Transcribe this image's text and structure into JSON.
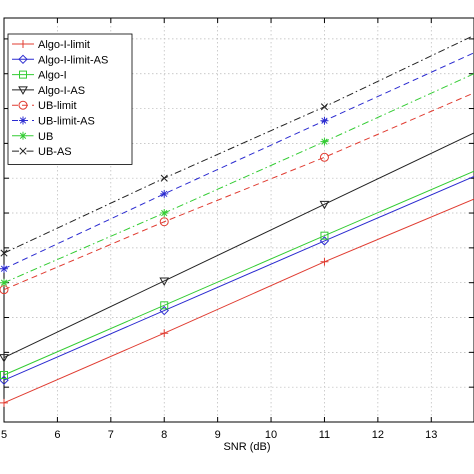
{
  "chart_data": {
    "type": "line",
    "xlabel": "SNR (dB)",
    "ylabel": "",
    "title": "",
    "xlim": [
      5,
      13.8
    ],
    "ylim": [
      0,
      11.6
    ],
    "xticks": [
      5,
      6,
      7,
      8,
      9,
      10,
      11,
      12,
      13
    ],
    "yticks": [
      1,
      2,
      3,
      4,
      5,
      6,
      7,
      8,
      9,
      10,
      11
    ],
    "grid": true,
    "legend_position": "top-left",
    "series": [
      {
        "name": "Algo-I-limit",
        "color": "#e03c31",
        "dash": "solid",
        "marker": "plus",
        "x": [
          5,
          8,
          11,
          13.8
        ],
        "y": [
          0.55,
          2.55,
          4.6,
          6.4
        ]
      },
      {
        "name": "Algo-I-limit-AS",
        "color": "#2b2bd0",
        "dash": "solid",
        "marker": "diamond",
        "x": [
          5,
          8,
          11,
          13.8
        ],
        "y": [
          1.2,
          3.2,
          5.2,
          7.05
        ]
      },
      {
        "name": "Algo-I",
        "color": "#33cc33",
        "dash": "solid",
        "marker": "square",
        "x": [
          5,
          8,
          11,
          13.8
        ],
        "y": [
          1.35,
          3.35,
          5.35,
          7.2
        ]
      },
      {
        "name": "Algo-I-AS",
        "color": "#222222",
        "dash": "solid",
        "marker": "triangle-down",
        "x": [
          5,
          8,
          11,
          13.8
        ],
        "y": [
          1.85,
          4.05,
          6.25,
          8.3
        ]
      },
      {
        "name": "UB-limit",
        "color": "#e03c31",
        "dash": "dashed",
        "marker": "circle",
        "x": [
          5,
          8,
          11,
          13.8
        ],
        "y": [
          3.8,
          5.75,
          7.6,
          9.45
        ]
      },
      {
        "name": "UB-limit-AS",
        "color": "#2b2bd0",
        "dash": "dashed",
        "marker": "asterisk",
        "x": [
          5,
          8,
          11,
          13.8
        ],
        "y": [
          4.4,
          6.55,
          8.65,
          10.6
        ]
      },
      {
        "name": "UB",
        "color": "#33cc33",
        "dash": "dashdot",
        "marker": "asterisk",
        "x": [
          5,
          8,
          11,
          13.8
        ],
        "y": [
          4.0,
          6.0,
          8.05,
          10.0
        ]
      },
      {
        "name": "UB-AS",
        "color": "#222222",
        "dash": "dashdot",
        "marker": "x",
        "x": [
          5,
          8,
          11,
          13.8
        ],
        "y": [
          4.85,
          7.0,
          9.05,
          11.1
        ]
      }
    ]
  }
}
